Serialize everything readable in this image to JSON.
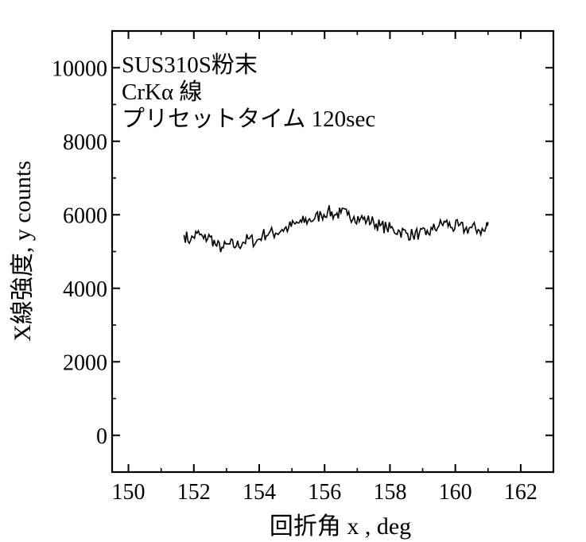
{
  "chart_data": {
    "type": "line",
    "xlabel": "回折角 x  , deg",
    "ylabel": "X線強度, y counts",
    "xlim": [
      149.5,
      163
    ],
    "ylim": [
      -1000,
      11000
    ],
    "xticks": [
      150,
      152,
      154,
      156,
      158,
      160,
      162
    ],
    "xtick_labels": [
      "150",
      "152",
      "154",
      "156",
      "158",
      "160",
      "162"
    ],
    "yticks": [
      0,
      2000,
      4000,
      6000,
      8000,
      10000
    ],
    "ytick_labels": [
      "0",
      "2000",
      "4000",
      "6000",
      "8000",
      "10000"
    ],
    "grid": false,
    "annotations": [
      "SUS310S粉末",
      "CrKα 線",
      "プリセットタイム 120sec"
    ],
    "series": [
      {
        "x": [
          151.7,
          151.9,
          152.1,
          152.3,
          152.5,
          152.7,
          152.9,
          153.1,
          153.3,
          153.5,
          153.7,
          153.9,
          154.1,
          154.3,
          154.5,
          154.7,
          154.9,
          155.1,
          155.3,
          155.5,
          155.7,
          155.9,
          156.1,
          156.3,
          156.5,
          156.7,
          156.9,
          157.1,
          157.3,
          157.5,
          157.7,
          157.9,
          158.1,
          158.3,
          158.5,
          158.7,
          158.9,
          159.1,
          159.3,
          159.5,
          159.7,
          159.9,
          160.1,
          160.3,
          160.5,
          160.7,
          160.9,
          161.0
        ],
        "y": [
          5450,
          5300,
          5500,
          5350,
          5400,
          5150,
          5100,
          5200,
          5150,
          5250,
          5350,
          5250,
          5450,
          5500,
          5500,
          5600,
          5650,
          5750,
          5800,
          5850,
          5900,
          6000,
          6100,
          6000,
          6050,
          6000,
          5950,
          5900,
          5850,
          5800,
          5700,
          5650,
          5600,
          5550,
          5500,
          5450,
          5500,
          5450,
          5600,
          5700,
          5800,
          5650,
          5700,
          5600,
          5650,
          5600,
          5550,
          5800
        ]
      }
    ]
  }
}
